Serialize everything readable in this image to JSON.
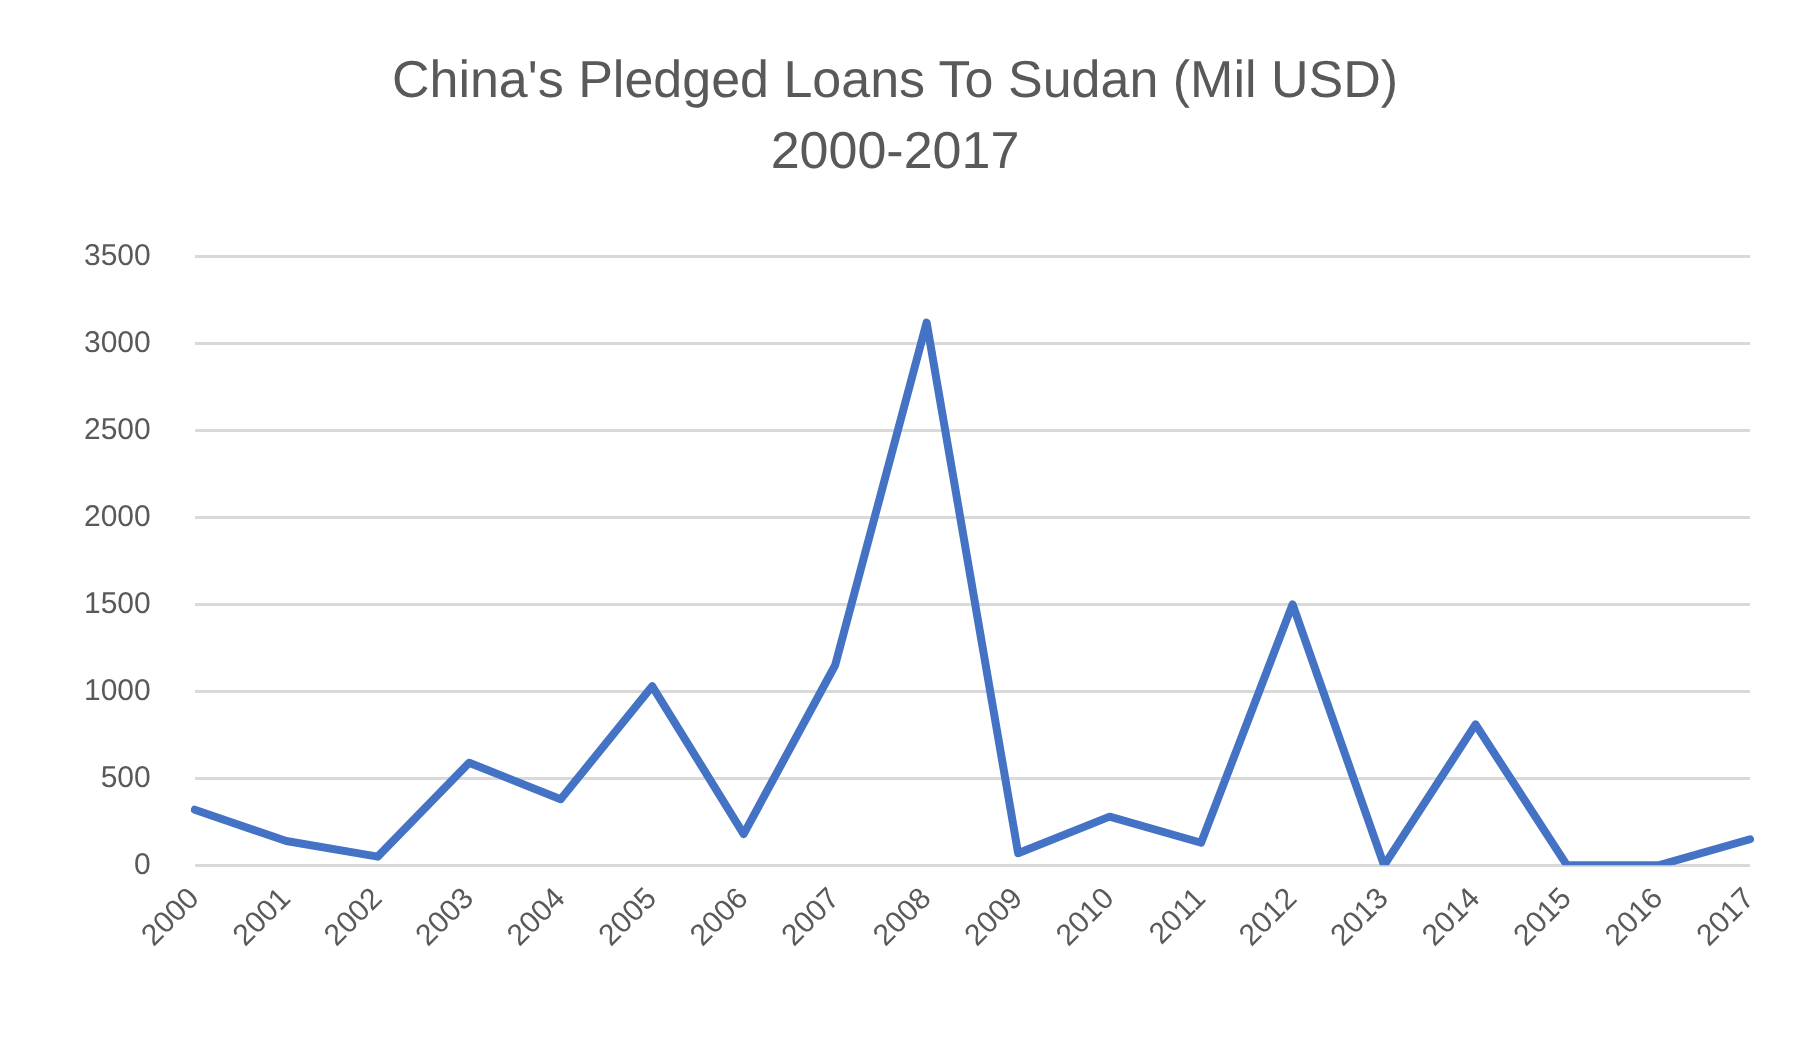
{
  "chart_data": {
    "type": "line",
    "title": "China's Pledged Loans To Sudan (Mil USD)",
    "subtitle": "2000-2017",
    "categories": [
      "2000",
      "2001",
      "2002",
      "2003",
      "2004",
      "2005",
      "2006",
      "2007",
      "2008",
      "2009",
      "2010",
      "2011",
      "2012",
      "2013",
      "2014",
      "2015",
      "2016",
      "2017"
    ],
    "series": [
      {
        "color": "#4472c4",
        "values": [
          320,
          140,
          50,
          590,
          380,
          1030,
          180,
          1150,
          3120,
          70,
          280,
          130,
          1500,
          0,
          810,
          0,
          0,
          150
        ]
      }
    ],
    "ylim": [
      0,
      3500
    ],
    "yticks": [
      0,
      500,
      1000,
      1500,
      2000,
      2500,
      3000,
      3500
    ],
    "grid": "y",
    "legend": false,
    "marker": "none",
    "line_style": "solid"
  }
}
